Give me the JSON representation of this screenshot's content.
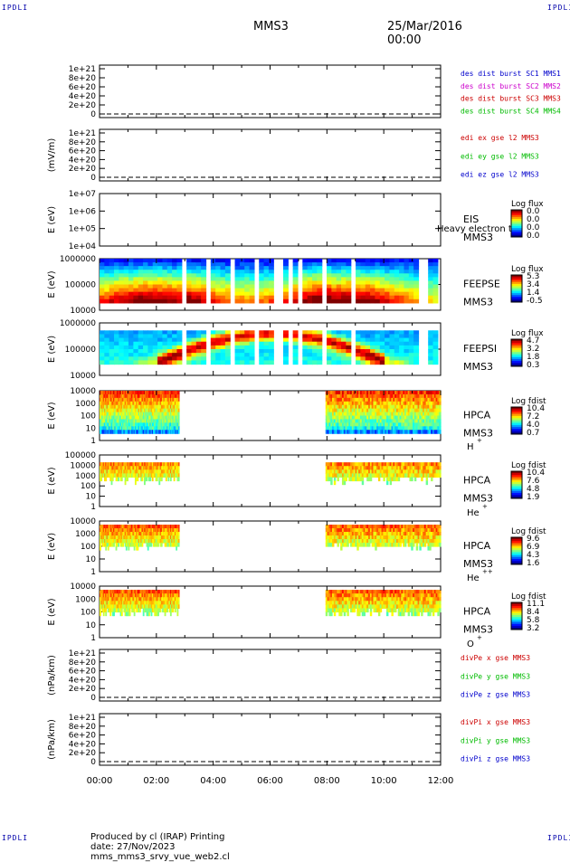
{
  "corners": {
    "top_left": "IPDLI",
    "top_right": "IPDLI",
    "bottom_left": "IPDLI",
    "bottom_right": "IPDLI"
  },
  "header": {
    "spacecraft": "MMS3",
    "date": "25/Mar/2016 00:00"
  },
  "footer": {
    "text": "Produced by cl (IRAP)   Printing date: 27/Nov/2023   mms_mms3_srvy_vue_web2.cl"
  },
  "x_axis": {
    "ticks": [
      "00:00",
      "02:00",
      "04:00",
      "06:00",
      "08:00",
      "10:00",
      "12:00"
    ]
  },
  "colors": {
    "frame": "#000000",
    "spec_gap_fill": "#ffffff"
  },
  "chart_data": [
    {
      "id": "p1",
      "type": "line",
      "ylabel": "",
      "yticks": [
        "1e+21",
        "8e+20",
        "6e+20",
        "4e+20",
        "2e+20",
        "0"
      ],
      "ylim": [
        0,
        1.05e+21
      ],
      "legend": [
        {
          "text": "des dist burst SC1 MMS1",
          "color": "#0000cc"
        },
        {
          "text": "des dist burst SC2 MMS2",
          "color": "#cc00cc"
        },
        {
          "text": "des dist burst SC3 MMS3",
          "color": "#cc0000"
        },
        {
          "text": "des dist burst SC4 MMS4",
          "color": "#00bb00"
        }
      ],
      "zero_line": true
    },
    {
      "id": "p2",
      "type": "line",
      "ylabel": "(mV/m)",
      "yticks": [
        "1e+21",
        "8e+20",
        "6e+20",
        "4e+20",
        "2e+20",
        "0"
      ],
      "ylim": [
        0,
        1.05e+21
      ],
      "legend": [
        {
          "text": "edi ex gse l2 MMS3",
          "color": "#cc0000"
        },
        {
          "text": "edi ey gse l2 MMS3",
          "color": "#00bb00"
        },
        {
          "text": "edi ez gse l2 MMS3",
          "color": "#0000cc"
        }
      ],
      "zero_line": true
    },
    {
      "id": "p3",
      "type": "heatmap",
      "ylabel": "E (eV)",
      "yticks": [
        "1e+07",
        "1e+06",
        "1e+05",
        "1e+04"
      ],
      "instrument": [
        "EIS",
        "MMS3"
      ],
      "overlay_text": "Heavy electron to",
      "colorbar": {
        "title": "Log flux",
        "ticks": [
          "0.0",
          "0.0",
          "0.0",
          "0.0"
        ]
      },
      "empty": true
    },
    {
      "id": "p4",
      "type": "heatmap",
      "ylabel": "E (eV)",
      "yticks": [
        "1000000",
        "100000",
        "10000"
      ],
      "instrument": [
        "FEEPSE",
        "MMS3"
      ],
      "colorbar": {
        "title": "Log flux",
        "ticks": [
          "5.3",
          "3.4",
          "1.4",
          "-0.5"
        ]
      },
      "coverage_hours": [
        [
          0.0,
          11.9
        ]
      ]
    },
    {
      "id": "p5",
      "type": "heatmap",
      "ylabel": "E (eV)",
      "yticks": [
        "1000000",
        "100000",
        "10000"
      ],
      "instrument": [
        "FEEPSI",
        "MMS3"
      ],
      "colorbar": {
        "title": "Log flux",
        "ticks": [
          "4.7",
          "3.2",
          "1.8",
          "0.3"
        ]
      },
      "coverage_hours": [
        [
          0.0,
          11.9
        ]
      ]
    },
    {
      "id": "p6",
      "type": "heatmap",
      "ylabel": "E (eV)",
      "yticks": [
        "10000",
        "1000",
        "100",
        "10",
        "1"
      ],
      "instrument": [
        "HPCA",
        "MMS3",
        "H",
        "+"
      ],
      "colorbar": {
        "title": "Log fdist",
        "ticks": [
          "10.4",
          "7.2",
          "4.0",
          "0.7"
        ]
      },
      "coverage_hours": [
        [
          0.0,
          2.8
        ],
        [
          7.95,
          12.0
        ]
      ]
    },
    {
      "id": "p7",
      "type": "heatmap",
      "ylabel": "E (eV)",
      "yticks": [
        "100000",
        "10000",
        "1000",
        "100",
        "10",
        "1"
      ],
      "instrument": [
        "HPCA",
        "MMS3",
        "He",
        "+"
      ],
      "colorbar": {
        "title": "Log fdist",
        "ticks": [
          "10.4",
          "7.6",
          "4.8",
          "1.9"
        ]
      },
      "coverage_hours": [
        [
          0.0,
          2.8
        ],
        [
          7.95,
          12.0
        ]
      ]
    },
    {
      "id": "p8",
      "type": "heatmap",
      "ylabel": "E (eV)",
      "yticks": [
        "10000",
        "1000",
        "100",
        "10",
        "1"
      ],
      "instrument": [
        "HPCA",
        "MMS3",
        "He",
        "++"
      ],
      "colorbar": {
        "title": "Log fdist",
        "ticks": [
          "9.6",
          "6.9",
          "4.3",
          "1.6"
        ]
      },
      "coverage_hours": [
        [
          0.0,
          2.8
        ],
        [
          7.95,
          12.0
        ]
      ]
    },
    {
      "id": "p9",
      "type": "heatmap",
      "ylabel": "E (eV)",
      "yticks": [
        "10000",
        "1000",
        "100",
        "10",
        "1"
      ],
      "instrument": [
        "HPCA",
        "MMS3",
        "O",
        "+"
      ],
      "colorbar": {
        "title": "Log fdist",
        "ticks": [
          "11.1",
          "8.4",
          "5.8",
          "3.2"
        ]
      },
      "coverage_hours": [
        [
          0.0,
          2.8
        ],
        [
          7.95,
          12.0
        ]
      ]
    },
    {
      "id": "p10",
      "type": "line",
      "ylabel": "(nPa/km)",
      "yticks": [
        "1e+21",
        "8e+20",
        "6e+20",
        "4e+20",
        "2e+20",
        "0"
      ],
      "ylim": [
        0,
        1.05e+21
      ],
      "legend": [
        {
          "text": "divPe x gse MMS3",
          "color": "#cc0000"
        },
        {
          "text": "divPe y gse MMS3",
          "color": "#00bb00"
        },
        {
          "text": "divPe z gse MMS3",
          "color": "#0000cc"
        }
      ],
      "zero_line": true
    },
    {
      "id": "p11",
      "type": "line",
      "ylabel": "(nPa/km)",
      "yticks": [
        "1e+21",
        "8e+20",
        "6e+20",
        "4e+20",
        "2e+20",
        "0"
      ],
      "ylim": [
        0,
        1.05e+21
      ],
      "legend": [
        {
          "text": "divPi x gse MMS3",
          "color": "#cc0000"
        },
        {
          "text": "divPi y gse MMS3",
          "color": "#00bb00"
        },
        {
          "text": "divPi z gse MMS3",
          "color": "#0000cc"
        }
      ],
      "zero_line": true
    }
  ]
}
